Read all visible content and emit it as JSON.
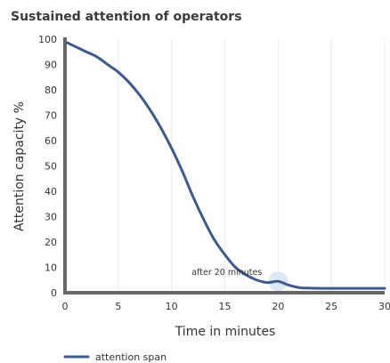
{
  "chart_data": {
    "type": "line",
    "title": "Sustained attention of operators",
    "xlabel": "Time in minutes",
    "ylabel": "Attention capacity %",
    "xlim": [
      0,
      30
    ],
    "ylim": [
      0,
      100
    ],
    "xticks": [
      0,
      5,
      10,
      15,
      20,
      25,
      30
    ],
    "yticks": [
      0,
      10,
      20,
      30,
      40,
      50,
      60,
      70,
      80,
      90,
      100
    ],
    "grid": "vertical",
    "legend_position": "bottom-left",
    "series": [
      {
        "name": "attention span",
        "color": "#3d5a8c",
        "x": [
          0,
          1,
          2,
          3,
          4,
          5,
          6,
          7,
          8,
          9,
          10,
          11,
          12,
          13,
          14,
          15,
          16,
          17,
          18,
          19,
          20,
          21,
          22,
          23,
          24,
          25,
          26,
          27,
          28,
          29,
          30
        ],
        "y": [
          99,
          97,
          95,
          93,
          90,
          87,
          83,
          78,
          72,
          65,
          57,
          48,
          38,
          29,
          21,
          15,
          10,
          7,
          5,
          4,
          4.5,
          3,
          2,
          1.8,
          1.7,
          1.7,
          1.7,
          1.7,
          1.7,
          1.7,
          1.7
        ]
      }
    ],
    "annotations": [
      {
        "text": "after 20 minutes",
        "x": 20,
        "y": 4.5,
        "marker_color": "#d8e6f4"
      }
    ]
  }
}
